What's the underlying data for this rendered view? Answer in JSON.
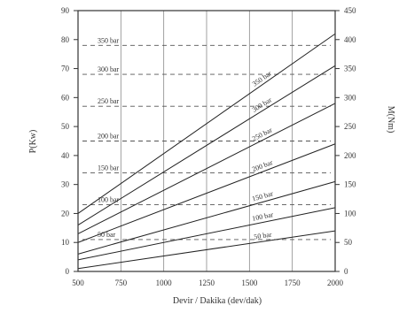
{
  "chart_data": {
    "type": "line",
    "xlabel": "Devir / Dakika (dev/dak)",
    "ylabel_left": "P(Kw)",
    "ylabel_right": "M(Nm)",
    "x_ticks": [
      "500",
      "750",
      "1000",
      "1250",
      "1500",
      "1750",
      "2000"
    ],
    "x_tick_values": [
      500,
      750,
      1000,
      1250,
      1500,
      1750,
      2000
    ],
    "y_left_ticks": [
      "0",
      "10",
      "20",
      "30",
      "40",
      "50",
      "60",
      "70",
      "80",
      "90"
    ],
    "y_left_tick_values": [
      0,
      10,
      20,
      30,
      40,
      50,
      60,
      70,
      80,
      90
    ],
    "y_right_ticks": [
      "0",
      "50",
      "100",
      "150",
      "200",
      "250",
      "300",
      "350",
      "400",
      "450"
    ],
    "y_right_tick_values": [
      0,
      50,
      100,
      150,
      200,
      250,
      300,
      350,
      400,
      450
    ],
    "xlim": [
      500,
      2000
    ],
    "ylim_left": [
      0,
      90
    ],
    "ylim_right": [
      0,
      450
    ],
    "grid": true,
    "series": [
      {
        "name": "350 bar",
        "x": [
          500,
          2000
        ],
        "y": [
          20,
          82
        ]
      },
      {
        "name": "300 bar",
        "x": [
          500,
          2000
        ],
        "y": [
          16,
          71
        ]
      },
      {
        "name": "250 bar",
        "x": [
          500,
          2000
        ],
        "y": [
          13,
          58
        ]
      },
      {
        "name": "200 bar",
        "x": [
          500,
          2000
        ],
        "y": [
          10,
          44
        ]
      },
      {
        "name": "150 bar",
        "x": [
          500,
          2000
        ],
        "y": [
          6,
          31
        ]
      },
      {
        "name": "100 bar",
        "x": [
          500,
          2000
        ],
        "y": [
          4,
          22
        ]
      },
      {
        "name": "50 bar",
        "x": [
          500,
          2000
        ],
        "y": [
          1,
          14
        ]
      }
    ],
    "torque_levels": [
      {
        "label": "350 bar",
        "value": 390
      },
      {
        "label": "300 bar",
        "value": 340
      },
      {
        "label": "250 bar",
        "value": 285
      },
      {
        "label": "200 bar",
        "value": 225
      },
      {
        "label": "150 bar",
        "value": 170
      },
      {
        "label": "100 bar",
        "value": 115
      },
      {
        "label": "50 bar",
        "value": 55
      }
    ]
  }
}
